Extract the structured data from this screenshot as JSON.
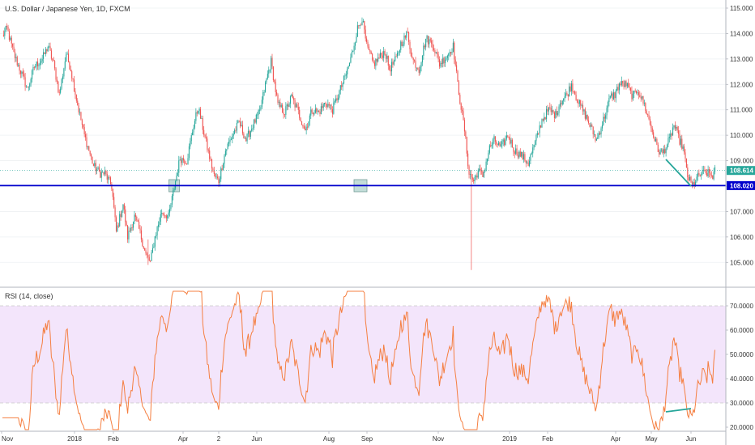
{
  "chart_data": [
    {
      "type": "candlestick",
      "title": "U.S. Dollar / Japanese Yen, 1D, FXCM",
      "ylim": [
        104.3,
        115.2
      ],
      "y_ticks": [
        105.0,
        106.0,
        107.0,
        108.0,
        109.0,
        110.0,
        111.0,
        112.0,
        113.0,
        114.0,
        115.0
      ],
      "y_tick_labels": [
        "105.000",
        "106.000",
        "107.000",
        "108.000",
        "109.000",
        "110.000",
        "111.000",
        "112.000",
        "113.000",
        "114.000",
        "115.000"
      ],
      "last_price": 108.614,
      "last_price_label": "108.614",
      "support_level": 108.02,
      "support_label": "108.020",
      "colors": {
        "up": "#26a69a",
        "down": "#ef5350",
        "support_line": "#0000cc",
        "last_badge": "#26a69a",
        "trend": "#26a69a",
        "box": "#7fbcb4"
      },
      "waypoints": [
        [
          0,
          113.9
        ],
        [
          4,
          114.2
        ],
        [
          10,
          113.2
        ],
        [
          17,
          112.4
        ],
        [
          22,
          111.8
        ],
        [
          28,
          112.7
        ],
        [
          35,
          113.0
        ],
        [
          40,
          113.5
        ],
        [
          45,
          112.8
        ],
        [
          50,
          111.6
        ],
        [
          56,
          113.2
        ],
        [
          60,
          112.6
        ],
        [
          66,
          111.2
        ],
        [
          72,
          110.0
        ],
        [
          80,
          108.8
        ],
        [
          86,
          108.5
        ],
        [
          90,
          108.5
        ],
        [
          96,
          108.0
        ],
        [
          100,
          106.2
        ],
        [
          106,
          107.3
        ],
        [
          110,
          106.0
        ],
        [
          116,
          106.8
        ],
        [
          120,
          106.3
        ],
        [
          126,
          105.3
        ],
        [
          130,
          105.0
        ],
        [
          134,
          106.0
        ],
        [
          140,
          107.0
        ],
        [
          146,
          106.8
        ],
        [
          152,
          108.2
        ],
        [
          156,
          109.1
        ],
        [
          162,
          109.0
        ],
        [
          168,
          110.4
        ],
        [
          172,
          111.1
        ],
        [
          176,
          110.3
        ],
        [
          180,
          109.5
        ],
        [
          186,
          108.4
        ],
        [
          190,
          108.2
        ],
        [
          196,
          109.4
        ],
        [
          202,
          110.0
        ],
        [
          208,
          110.5
        ],
        [
          214,
          109.8
        ],
        [
          220,
          110.4
        ],
        [
          226,
          110.9
        ],
        [
          232,
          112.2
        ],
        [
          236,
          112.9
        ],
        [
          242,
          111.2
        ],
        [
          248,
          110.9
        ],
        [
          254,
          111.5
        ],
        [
          260,
          110.9
        ],
        [
          266,
          110.2
        ],
        [
          272,
          111.0
        ],
        [
          278,
          110.9
        ],
        [
          284,
          111.3
        ],
        [
          290,
          111.0
        ],
        [
          296,
          111.7
        ],
        [
          302,
          112.4
        ],
        [
          306,
          113.0
        ],
        [
          312,
          114.2
        ],
        [
          316,
          114.6
        ],
        [
          320,
          113.5
        ],
        [
          326,
          112.8
        ],
        [
          330,
          113.0
        ],
        [
          336,
          113.3
        ],
        [
          340,
          112.6
        ],
        [
          346,
          113.0
        ],
        [
          350,
          113.6
        ],
        [
          356,
          114.0
        ],
        [
          360,
          113.0
        ],
        [
          366,
          112.6
        ],
        [
          372,
          113.8
        ],
        [
          378,
          113.6
        ],
        [
          384,
          112.8
        ],
        [
          390,
          113.1
        ],
        [
          396,
          113.5
        ],
        [
          400,
          112.0
        ],
        [
          406,
          110.2
        ],
        [
          410,
          108.5
        ],
        [
          414,
          108.2
        ],
        [
          418,
          108.6
        ],
        [
          422,
          108.4
        ],
        [
          428,
          109.5
        ],
        [
          432,
          109.8
        ],
        [
          438,
          109.5
        ],
        [
          444,
          110.0
        ],
        [
          450,
          109.4
        ],
        [
          456,
          109.2
        ],
        [
          462,
          108.9
        ],
        [
          468,
          109.7
        ],
        [
          474,
          110.6
        ],
        [
          480,
          111.0
        ],
        [
          486,
          110.8
        ],
        [
          490,
          111.3
        ],
        [
          496,
          111.6
        ],
        [
          500,
          112.0
        ],
        [
          506,
          111.3
        ],
        [
          512,
          110.8
        ],
        [
          518,
          110.2
        ],
        [
          522,
          109.8
        ],
        [
          528,
          110.6
        ],
        [
          534,
          111.5
        ],
        [
          538,
          111.6
        ],
        [
          542,
          112.0
        ],
        [
          548,
          112.0
        ],
        [
          554,
          111.5
        ],
        [
          558,
          111.8
        ],
        [
          564,
          111.2
        ],
        [
          570,
          110.3
        ],
        [
          576,
          109.4
        ],
        [
          580,
          109.3
        ],
        [
          586,
          109.8
        ],
        [
          590,
          110.4
        ],
        [
          594,
          109.9
        ],
        [
          598,
          109.5
        ],
        [
          602,
          108.4
        ],
        [
          606,
          108.0
        ],
        [
          610,
          108.3
        ],
        [
          614,
          108.5
        ],
        [
          620,
          108.5
        ],
        [
          624,
          108.4
        ],
        [
          626,
          108.6
        ]
      ],
      "anomalies": [
        {
          "i": 412,
          "low": 104.7,
          "high": 108.5
        },
        {
          "i": 128,
          "low": 104.9,
          "high": 105.9
        }
      ],
      "x_tick_labels": [
        "Nov",
        "2018",
        "Feb",
        "Apr",
        "2",
        "Jun",
        "Aug",
        "Sep",
        "Nov",
        "2019",
        "Feb",
        "Apr",
        "May",
        "Jun"
      ],
      "x_tick_index": [
        3,
        59,
        89,
        147,
        177,
        207,
        266,
        296,
        355,
        413,
        443,
        502,
        531,
        561
      ]
    },
    {
      "type": "line",
      "title": "RSI (14, close)",
      "ylim": [
        18,
        76
      ],
      "y_ticks": [
        20,
        30,
        40,
        50,
        60,
        70
      ],
      "y_tick_labels": [
        "20.0000",
        "30.0000",
        "40.0000",
        "50.0000",
        "60.0000",
        "70.0000"
      ],
      "band": [
        30,
        70
      ],
      "colors": {
        "line": "#f57f41",
        "band_fill": "#f3e5fb",
        "band_edge": "#c9c9c9",
        "divergence": "#26a69a"
      }
    }
  ],
  "last_price_badge": "108.614",
  "support_badge": "108.020"
}
